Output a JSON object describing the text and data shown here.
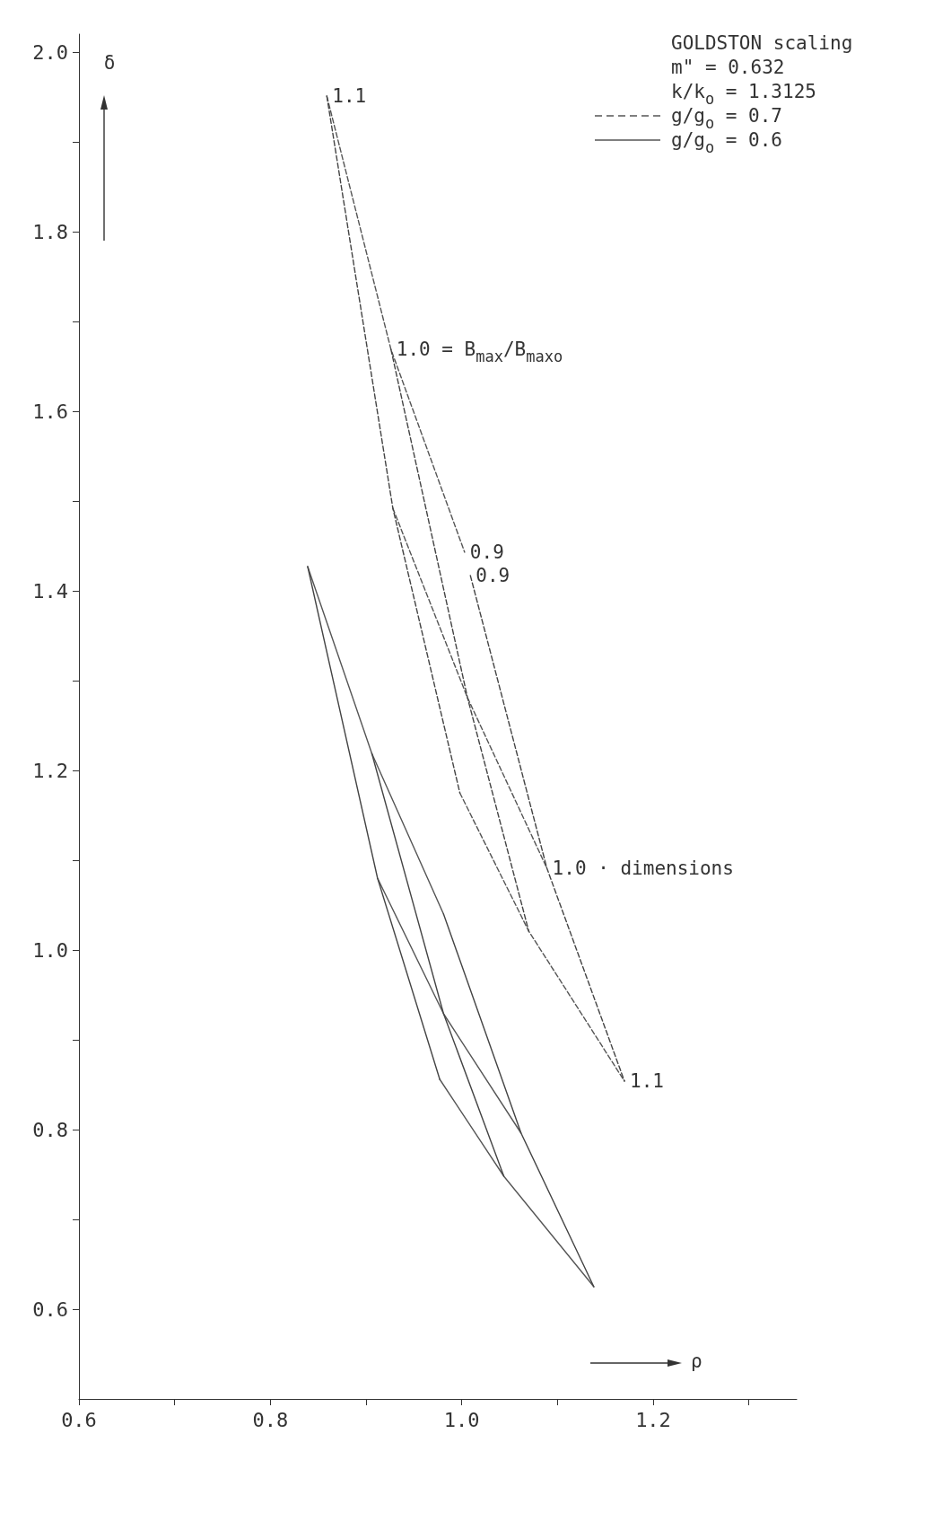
{
  "chart_data": {
    "type": "line",
    "xlabel": "ρ",
    "ylabel": "δ",
    "legend_title": "GOLDSTON scaling",
    "legend": "top right",
    "xlim": [
      0.6,
      1.35
    ],
    "ylim": [
      0.5,
      2.02
    ],
    "xticks": [
      0.6,
      {
        "value": 0.7,
        "label": null
      },
      0.8,
      {
        "value": 0.9,
        "label": null
      },
      {
        "value": 1.0,
        "label": "1.0"
      },
      {
        "value": 1.1,
        "label": null
      },
      1.2,
      {
        "value": 1.3,
        "label": null
      }
    ],
    "yticks": [
      0.6,
      {
        "value": 0.7,
        "label": null
      },
      0.8,
      {
        "value": 0.9,
        "label": null
      },
      {
        "value": 1.0,
        "label": "1.0"
      },
      {
        "value": 1.1,
        "label": null
      },
      1.2,
      {
        "value": 1.3,
        "label": null
      },
      1.4,
      {
        "value": 1.5,
        "label": null
      },
      1.6,
      {
        "value": 1.7,
        "label": null
      },
      1.8,
      {
        "value": 1.9,
        "label": null
      },
      {
        "value": 2.0,
        "label": "2.0"
      }
    ],
    "series": [
      {
        "name": "g/g$_{o}$ = 0.7",
        "color": "#555555",
        "line_style": "dashed",
        "x": [
          0.859,
          0.926,
          1.003
        ],
        "values": [
          1.951,
          1.669,
          1.443
        ]
      },
      {
        "color": "#555555",
        "line_style": "dashed",
        "x": [
          0.928,
          1.006,
          1.089
        ],
        "values": [
          1.492,
          1.281,
          1.091
        ]
      },
      {
        "color": "#555555",
        "line_style": "dashed",
        "x": [
          0.998,
          1.07,
          1.17
        ],
        "values": [
          1.175,
          1.021,
          0.854
        ]
      },
      {
        "color": "#444444",
        "line_style": "dashed",
        "x": [
          0.859,
          0.928,
          0.998
        ],
        "values": [
          1.951,
          1.492,
          1.175
        ]
      },
      {
        "color": "#444444",
        "line_style": "dashed",
        "x": [
          0.926,
          1.006,
          1.07
        ],
        "values": [
          1.669,
          1.281,
          1.021
        ]
      },
      {
        "color": "#444444",
        "line_style": "dashed",
        "x": [
          1.009,
          1.089,
          1.17
        ],
        "values": [
          1.417,
          1.091,
          0.854
        ]
      },
      {
        "name": "g/g$_{o}$ = 0.6",
        "color": "#555555",
        "line_style": "solid",
        "x": [
          0.839,
          0.906,
          0.981
        ],
        "values": [
          1.427,
          1.219,
          1.04
        ]
      },
      {
        "color": "#555555",
        "line_style": "solid",
        "x": [
          0.912,
          0.981,
          1.062
        ],
        "values": [
          1.08,
          0.929,
          0.796
        ]
      },
      {
        "color": "#555555",
        "line_style": "solid",
        "x": [
          0.977,
          1.044,
          1.138
        ],
        "values": [
          0.856,
          0.748,
          0.625
        ]
      },
      {
        "color": "#444444",
        "line_style": "solid",
        "x": [
          0.839,
          0.912,
          0.977
        ],
        "values": [
          1.427,
          1.08,
          0.856
        ]
      },
      {
        "color": "#444444",
        "line_style": "solid",
        "x": [
          0.906,
          0.981,
          1.044
        ],
        "values": [
          1.219,
          0.929,
          0.748
        ]
      },
      {
        "color": "#444444",
        "line_style": "solid",
        "x": [
          0.981,
          1.062,
          1.138
        ],
        "values": [
          1.04,
          0.796,
          0.625
        ]
      }
    ],
    "annotations": [
      "m\" = 0.632",
      "k/k$_{o}$ = 1.3125",
      {
        "text": "1.1",
        "x": 0.859,
        "y": 1.951
      },
      {
        "text": "1.0 = B$_{max}$/B$_{max}$$_{o}$",
        "x": 0.926,
        "y": 1.669
      },
      {
        "text": "0.9",
        "x": 1.003,
        "y": 1.443
      },
      {
        "text": "0.9",
        "x": 1.009,
        "y": 1.417
      },
      {
        "text": "1.0 · dimensions",
        "x": 1.089,
        "y": 1.091
      },
      {
        "text": "1.1",
        "x": 1.17,
        "y": 0.854
      }
    ]
  }
}
